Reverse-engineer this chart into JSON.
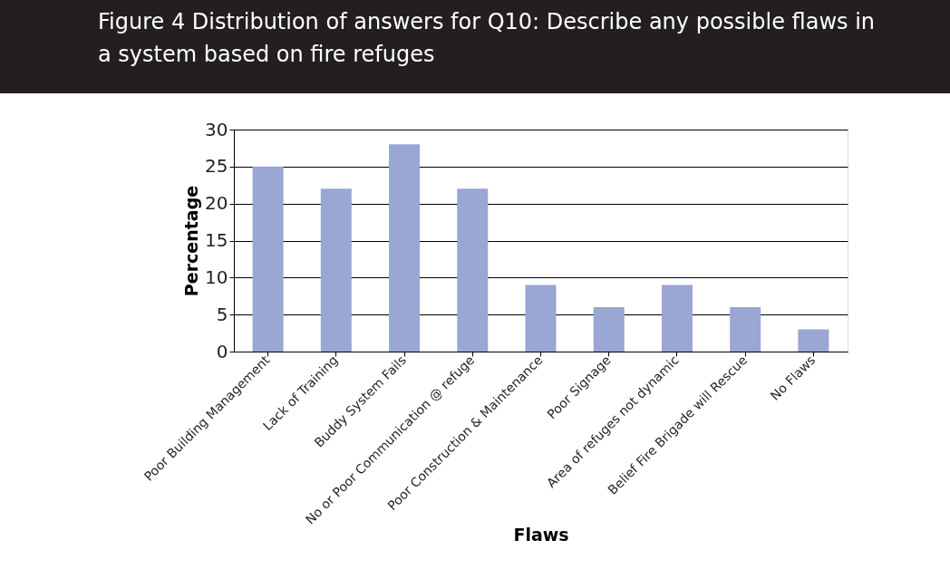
{
  "chart_data": {
    "type": "bar",
    "title": "Figure 4 Distribution of answers for Q10: Describe any possible flaws in a system based on fire refuges",
    "xlabel": "Flaws",
    "ylabel": "Percentage",
    "categories": [
      "Poor Building Management",
      "Lack of Training",
      "Buddy System Fails",
      "No or Poor Communication @ refuge",
      "Poor Construction & Maintenance",
      "Poor Signage",
      "Area of refuges not dynamic",
      "Belief Fire Brigade will Rescue",
      "No Flaws"
    ],
    "values": [
      25,
      22,
      28,
      22,
      9,
      6,
      9,
      6,
      3
    ],
    "color": "#9aa6d3",
    "ylim": [
      0,
      30
    ],
    "yticks": [
      0,
      5,
      10,
      15,
      20,
      25,
      30
    ],
    "grid": "y"
  }
}
